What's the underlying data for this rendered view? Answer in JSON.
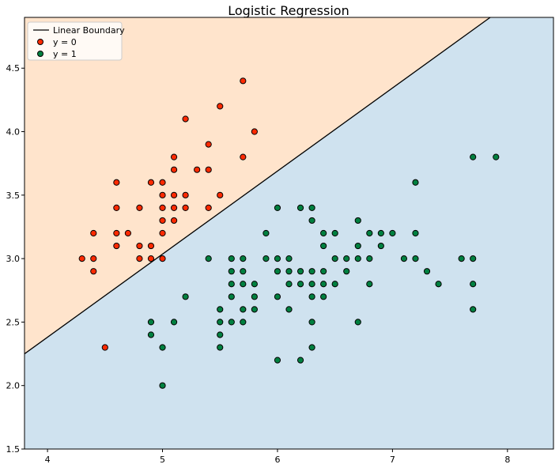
{
  "chart_data": {
    "type": "scatter",
    "title": "Logistic Regression",
    "xlabel": "",
    "ylabel": "",
    "xlim": [
      3.8,
      8.4
    ],
    "ylim": [
      1.5,
      4.9
    ],
    "xticks": [
      4,
      5,
      6,
      7,
      8
    ],
    "yticks": [
      1.5,
      2.0,
      2.5,
      3.0,
      3.5,
      4.0,
      4.5
    ],
    "grid": false,
    "legend_position": "top-left",
    "boundary": {
      "name": "Linear Boundary",
      "color": "#000000",
      "points": [
        [
          3.8,
          2.25
        ],
        [
          7.85,
          4.9
        ]
      ]
    },
    "regions": {
      "above_color": "#ffe4cc",
      "below_color": "#cfe2ef"
    },
    "series": [
      {
        "name": "y = 0",
        "color": "#ff2a00",
        "points": [
          [
            4.3,
            3.0
          ],
          [
            4.4,
            2.9
          ],
          [
            4.4,
            3.0
          ],
          [
            4.4,
            3.2
          ],
          [
            4.5,
            2.3
          ],
          [
            4.6,
            3.1
          ],
          [
            4.6,
            3.2
          ],
          [
            4.6,
            3.4
          ],
          [
            4.6,
            3.6
          ],
          [
            4.7,
            3.2
          ],
          [
            4.8,
            3.0
          ],
          [
            4.8,
            3.1
          ],
          [
            4.8,
            3.4
          ],
          [
            4.9,
            3.0
          ],
          [
            4.9,
            3.1
          ],
          [
            4.9,
            3.6
          ],
          [
            5.0,
            3.0
          ],
          [
            5.0,
            3.2
          ],
          [
            5.0,
            3.3
          ],
          [
            5.0,
            3.4
          ],
          [
            5.0,
            3.5
          ],
          [
            5.0,
            3.6
          ],
          [
            5.1,
            3.3
          ],
          [
            5.1,
            3.4
          ],
          [
            5.1,
            3.5
          ],
          [
            5.1,
            3.7
          ],
          [
            5.1,
            3.8
          ],
          [
            5.2,
            3.4
          ],
          [
            5.2,
            3.5
          ],
          [
            5.2,
            4.1
          ],
          [
            5.3,
            3.7
          ],
          [
            5.4,
            3.4
          ],
          [
            5.4,
            3.7
          ],
          [
            5.4,
            3.9
          ],
          [
            5.5,
            3.5
          ],
          [
            5.5,
            4.2
          ],
          [
            5.7,
            3.8
          ],
          [
            5.7,
            4.4
          ],
          [
            5.8,
            4.0
          ]
        ]
      },
      {
        "name": "y = 1",
        "color": "#008040",
        "points": [
          [
            4.9,
            2.4
          ],
          [
            4.9,
            2.5
          ],
          [
            5.0,
            2.0
          ],
          [
            5.0,
            2.3
          ],
          [
            5.1,
            2.5
          ],
          [
            5.2,
            2.7
          ],
          [
            5.4,
            3.0
          ],
          [
            5.5,
            2.3
          ],
          [
            5.5,
            2.4
          ],
          [
            5.5,
            2.5
          ],
          [
            5.5,
            2.6
          ],
          [
            5.6,
            2.5
          ],
          [
            5.6,
            2.7
          ],
          [
            5.6,
            2.8
          ],
          [
            5.6,
            2.9
          ],
          [
            5.6,
            3.0
          ],
          [
            5.7,
            2.5
          ],
          [
            5.7,
            2.6
          ],
          [
            5.7,
            2.8
          ],
          [
            5.7,
            2.9
          ],
          [
            5.7,
            3.0
          ],
          [
            5.8,
            2.6
          ],
          [
            5.8,
            2.7
          ],
          [
            5.8,
            2.8
          ],
          [
            5.9,
            3.0
          ],
          [
            5.9,
            3.2
          ],
          [
            6.0,
            2.2
          ],
          [
            6.0,
            2.7
          ],
          [
            6.0,
            2.9
          ],
          [
            6.0,
            3.0
          ],
          [
            6.0,
            3.4
          ],
          [
            6.1,
            2.6
          ],
          [
            6.1,
            2.8
          ],
          [
            6.1,
            2.9
          ],
          [
            6.1,
            3.0
          ],
          [
            6.2,
            2.2
          ],
          [
            6.2,
            2.8
          ],
          [
            6.2,
            2.9
          ],
          [
            6.2,
            3.4
          ],
          [
            6.3,
            2.3
          ],
          [
            6.3,
            2.5
          ],
          [
            6.3,
            2.7
          ],
          [
            6.3,
            2.8
          ],
          [
            6.3,
            2.9
          ],
          [
            6.3,
            3.3
          ],
          [
            6.3,
            3.4
          ],
          [
            6.4,
            2.7
          ],
          [
            6.4,
            2.8
          ],
          [
            6.4,
            2.9
          ],
          [
            6.4,
            3.1
          ],
          [
            6.4,
            3.2
          ],
          [
            6.5,
            2.8
          ],
          [
            6.5,
            3.0
          ],
          [
            6.5,
            3.2
          ],
          [
            6.6,
            2.9
          ],
          [
            6.6,
            3.0
          ],
          [
            6.7,
            2.5
          ],
          [
            6.7,
            3.0
          ],
          [
            6.7,
            3.1
          ],
          [
            6.7,
            3.3
          ],
          [
            6.8,
            2.8
          ],
          [
            6.8,
            3.0
          ],
          [
            6.8,
            3.2
          ],
          [
            6.9,
            3.1
          ],
          [
            6.9,
            3.2
          ],
          [
            7.0,
            3.2
          ],
          [
            7.1,
            3.0
          ],
          [
            7.2,
            3.0
          ],
          [
            7.2,
            3.2
          ],
          [
            7.2,
            3.6
          ],
          [
            7.3,
            2.9
          ],
          [
            7.4,
            2.8
          ],
          [
            7.6,
            3.0
          ],
          [
            7.7,
            2.6
          ],
          [
            7.7,
            2.8
          ],
          [
            7.7,
            3.0
          ],
          [
            7.7,
            3.8
          ],
          [
            7.9,
            3.8
          ]
        ]
      }
    ]
  }
}
